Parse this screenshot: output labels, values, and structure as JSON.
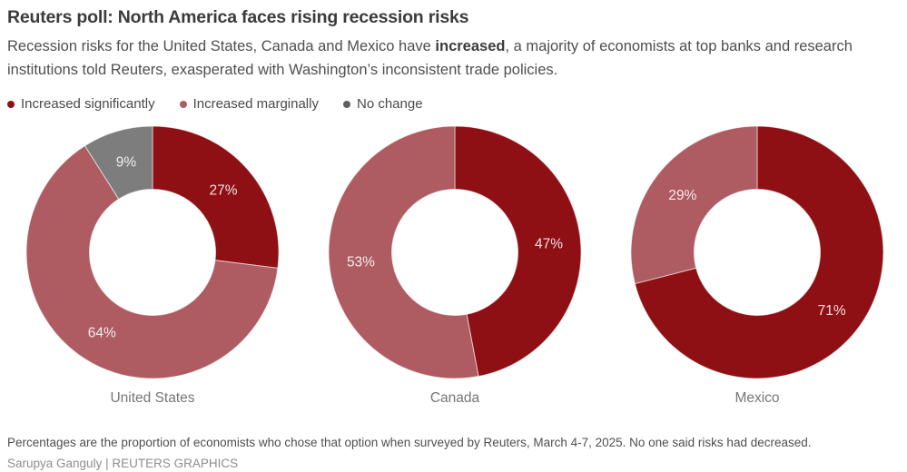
{
  "header": {
    "title": "Reuters poll: North America faces rising recession risks",
    "subtitle_part1": "Recession risks for the United States, Canada and Mexico have ",
    "subtitle_bold": "increased",
    "subtitle_part2": ", a majority of economists at top banks and research institutions told Reuters, exasperated with Washington’s inconsistent trade policies."
  },
  "chart_data": {
    "type": "pie",
    "variant": "donut",
    "start_angle": "top",
    "direction": "clockwise",
    "inner_radius_ratio": 0.5,
    "label_format": "percent",
    "legend": [
      {
        "label": "Increased significantly",
        "swatch": "#8e1014"
      },
      {
        "label": "Increased marginally",
        "swatch": "#ae5c62"
      },
      {
        "label": "No change",
        "swatch": "#5f5f5f"
      }
    ],
    "charts": [
      {
        "category": "United States",
        "slices": [
          {
            "label": "Increased significantly",
            "value": 27,
            "color": "#8e1014"
          },
          {
            "label": "Increased marginally",
            "value": 64,
            "color": "#ae5c62"
          },
          {
            "label": "No change",
            "value": 9,
            "color": "#7d7d7d"
          }
        ]
      },
      {
        "category": "Canada",
        "slices": [
          {
            "label": "Increased significantly",
            "value": 47,
            "color": "#8e1014"
          },
          {
            "label": "Increased marginally",
            "value": 53,
            "color": "#ae5c62"
          }
        ]
      },
      {
        "category": "Mexico",
        "slices": [
          {
            "label": "Increased significantly",
            "value": 71,
            "color": "#8e1014"
          },
          {
            "label": "Increased marginally",
            "value": 29,
            "color": "#ae5c62"
          }
        ]
      }
    ]
  },
  "footer": {
    "note": "Percentages are the proportion of economists who chose that option when surveyed by Reuters, March 4-7, 2025. No one said risks had decreased.",
    "credit": "Sarupya Ganguly | REUTERS GRAPHICS"
  }
}
